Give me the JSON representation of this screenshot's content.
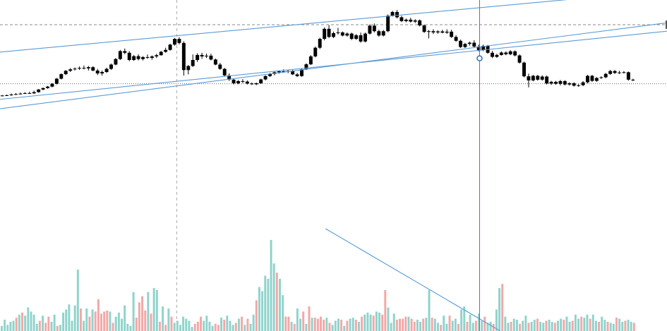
{
  "chart_data": {
    "type": "candlestick",
    "title": "",
    "xlabel": "",
    "ylabel": "",
    "grid": false,
    "legend": "none",
    "colors": {
      "candle": "#000000",
      "volume_up": "#8fd3cc",
      "volume_down": "#f4a7a7",
      "trendline": "#5b9bd5",
      "crosshair": "#a44aa0",
      "dashed": "#888888"
    },
    "ylim": [
      0,
      100
    ],
    "volume_ylim": [
      0,
      100
    ],
    "candles": [
      [
        60.2,
        60.4,
        59.9,
        60.2
      ],
      [
        60.2,
        60.6,
        60.0,
        60.3
      ],
      [
        60.3,
        61.0,
        60.1,
        60.6
      ],
      [
        60.6,
        61.2,
        60.4,
        60.8
      ],
      [
        60.8,
        61.4,
        60.6,
        61.0
      ],
      [
        61.0,
        61.6,
        60.8,
        61.2
      ],
      [
        61.2,
        61.8,
        60.9,
        61.1
      ],
      [
        61.1,
        62.2,
        60.9,
        61.6
      ],
      [
        61.6,
        62.9,
        61.4,
        62.7
      ],
      [
        62.7,
        63.5,
        62.4,
        63.3
      ],
      [
        63.3,
        64.2,
        63.0,
        63.9
      ],
      [
        63.9,
        65.4,
        63.6,
        65.1
      ],
      [
        65.1,
        67.5,
        64.8,
        67.2
      ],
      [
        67.2,
        69.4,
        66.9,
        69.1
      ],
      [
        69.1,
        70.8,
        68.7,
        70.5
      ],
      [
        70.5,
        71.6,
        70.0,
        71.1
      ],
      [
        71.1,
        71.9,
        70.6,
        71.4
      ],
      [
        71.4,
        72.3,
        70.9,
        71.7
      ],
      [
        71.7,
        72.7,
        71.1,
        71.5
      ],
      [
        71.5,
        72.5,
        70.6,
        72.0
      ],
      [
        72.0,
        72.4,
        70.3,
        70.6
      ],
      [
        70.6,
        71.3,
        68.7,
        69.4
      ],
      [
        69.4,
        70.6,
        68.5,
        70.0
      ],
      [
        70.0,
        71.8,
        69.6,
        71.3
      ],
      [
        71.3,
        73.5,
        70.9,
        73.1
      ],
      [
        73.1,
        75.8,
        72.8,
        75.4
      ],
      [
        75.4,
        79.2,
        75.0,
        78.7
      ],
      [
        78.7,
        79.8,
        77.4,
        78.0
      ],
      [
        78.0,
        78.7,
        74.5,
        75.0
      ],
      [
        75.0,
        77.1,
        74.6,
        76.6
      ],
      [
        76.6,
        77.4,
        74.8,
        75.4
      ],
      [
        75.4,
        76.6,
        74.8,
        76.2
      ],
      [
        76.2,
        77.3,
        75.5,
        75.9
      ],
      [
        75.9,
        76.9,
        75.1,
        76.5
      ],
      [
        76.5,
        77.6,
        75.8,
        77.0
      ],
      [
        77.0,
        78.8,
        76.8,
        78.4
      ],
      [
        78.4,
        80.1,
        78.0,
        79.2
      ],
      [
        79.2,
        81.8,
        78.9,
        81.4
      ],
      [
        81.4,
        84.2,
        81.0,
        83.8
      ],
      [
        83.8,
        84.5,
        81.5,
        82.1
      ],
      [
        82.1,
        82.8,
        68.5,
        70.8
      ],
      [
        70.8,
        72.9,
        69.0,
        72.5
      ],
      [
        72.5,
        77.3,
        72.1,
        75.0
      ],
      [
        75.0,
        77.8,
        74.2,
        77.1
      ],
      [
        77.1,
        78.0,
        75.5,
        76.5
      ],
      [
        76.5,
        77.7,
        75.8,
        76.8
      ],
      [
        76.8,
        77.6,
        74.8,
        75.2
      ],
      [
        75.2,
        75.6,
        72.8,
        73.1
      ],
      [
        73.1,
        73.8,
        70.9,
        71.3
      ],
      [
        71.3,
        71.7,
        68.2,
        68.6
      ],
      [
        68.6,
        69.4,
        66.3,
        66.8
      ],
      [
        66.8,
        67.2,
        64.8,
        65.3
      ],
      [
        65.3,
        66.6,
        64.9,
        66.2
      ],
      [
        66.2,
        67.0,
        65.4,
        66.0
      ],
      [
        66.0,
        66.5,
        64.8,
        65.2
      ],
      [
        65.2,
        65.6,
        64.6,
        64.9
      ],
      [
        64.9,
        65.6,
        64.5,
        65.3
      ],
      [
        65.3,
        67.2,
        65.0,
        66.9
      ],
      [
        66.9,
        68.6,
        66.5,
        68.3
      ],
      [
        68.3,
        69.6,
        67.9,
        69.2
      ],
      [
        69.2,
        70.2,
        68.6,
        69.9
      ],
      [
        69.9,
        70.7,
        69.3,
        70.3
      ],
      [
        70.3,
        71.1,
        69.7,
        70.1
      ],
      [
        70.1,
        70.9,
        69.5,
        70.4
      ],
      [
        70.4,
        70.9,
        68.7,
        69.0
      ],
      [
        69.0,
        69.6,
        67.9,
        68.3
      ],
      [
        68.3,
        71.5,
        68.0,
        71.1
      ],
      [
        71.1,
        73.6,
        70.8,
        73.2
      ],
      [
        73.2,
        77.0,
        72.9,
        76.5
      ],
      [
        76.5,
        80.6,
        76.1,
        80.1
      ],
      [
        80.1,
        84.3,
        79.6,
        83.8
      ],
      [
        83.8,
        88.6,
        83.2,
        88.0
      ],
      [
        88.0,
        89.5,
        84.2,
        84.6
      ],
      [
        84.6,
        86.8,
        84.1,
        86.2
      ],
      [
        86.2,
        88.4,
        85.6,
        86.5
      ],
      [
        86.5,
        86.9,
        84.8,
        85.2
      ],
      [
        85.2,
        86.5,
        84.7,
        86.0
      ],
      [
        86.0,
        86.4,
        83.3,
        83.8
      ],
      [
        83.8,
        85.8,
        83.4,
        85.3
      ],
      [
        85.3,
        86.4,
        82.2,
        82.7
      ],
      [
        82.7,
        86.4,
        82.3,
        86.0
      ],
      [
        86.0,
        89.8,
        85.6,
        89.3
      ],
      [
        89.3,
        90.2,
        86.5,
        87.0
      ],
      [
        87.0,
        87.6,
        84.7,
        85.2
      ],
      [
        85.2,
        87.5,
        84.8,
        87.0
      ],
      [
        87.0,
        94.0,
        86.6,
        93.5
      ],
      [
        93.5,
        95.5,
        93.1,
        95.0
      ],
      [
        95.0,
        95.8,
        92.3,
        92.8
      ],
      [
        92.8,
        93.4,
        90.8,
        91.2
      ],
      [
        91.2,
        92.3,
        90.7,
        91.8
      ],
      [
        91.8,
        92.6,
        90.6,
        91.0
      ],
      [
        91.0,
        92.0,
        90.4,
        91.5
      ],
      [
        91.5,
        91.9,
        89.0,
        89.4
      ],
      [
        89.4,
        89.8,
        86.3,
        86.7
      ],
      [
        86.7,
        87.5,
        84.0,
        87.0
      ],
      [
        87.0,
        87.8,
        85.8,
        86.5
      ],
      [
        86.5,
        87.4,
        85.9,
        86.9
      ],
      [
        86.9,
        87.6,
        86.1,
        86.4
      ],
      [
        86.4,
        87.8,
        85.9,
        86.8
      ],
      [
        86.8,
        87.6,
        84.2,
        84.6
      ],
      [
        84.6,
        85.3,
        82.6,
        83.0
      ],
      [
        83.0,
        83.5,
        80.0,
        80.4
      ],
      [
        80.4,
        82.1,
        80.0,
        81.7
      ],
      [
        81.7,
        82.7,
        81.0,
        82.2
      ],
      [
        82.2,
        83.2,
        80.1,
        80.6
      ],
      [
        80.6,
        81.4,
        78.6,
        79.1
      ],
      [
        79.1,
        81.4,
        78.7,
        80.9
      ],
      [
        80.9,
        81.3,
        77.6,
        78.0
      ],
      [
        78.0,
        78.8,
        75.8,
        76.3
      ],
      [
        76.3,
        77.6,
        75.9,
        77.1
      ],
      [
        77.1,
        78.6,
        76.8,
        78.1
      ],
      [
        78.1,
        78.6,
        77.0,
        77.4
      ],
      [
        77.4,
        79.1,
        77.0,
        78.6
      ],
      [
        78.6,
        79.0,
        76.5,
        76.9
      ],
      [
        76.9,
        77.3,
        73.5,
        73.9
      ],
      [
        73.9,
        74.3,
        67.8,
        68.2
      ],
      [
        68.2,
        69.3,
        63.6,
        66.5
      ],
      [
        66.5,
        68.8,
        66.1,
        68.4
      ],
      [
        68.4,
        68.8,
        66.4,
        66.8
      ],
      [
        66.8,
        68.6,
        66.4,
        68.1
      ],
      [
        68.1,
        68.5,
        64.8,
        65.2
      ],
      [
        65.2,
        66.3,
        64.6,
        65.9
      ],
      [
        65.9,
        66.3,
        64.7,
        65.1
      ],
      [
        65.1,
        66.7,
        64.4,
        66.2
      ],
      [
        66.2,
        66.6,
        64.4,
        64.8
      ],
      [
        64.8,
        65.7,
        64.3,
        65.3
      ],
      [
        65.3,
        65.7,
        63.9,
        64.3
      ],
      [
        64.3,
        64.9,
        63.8,
        64.5
      ],
      [
        64.5,
        66.2,
        64.1,
        65.7
      ],
      [
        65.7,
        68.8,
        65.3,
        68.4
      ],
      [
        68.4,
        68.8,
        65.9,
        66.3
      ],
      [
        66.3,
        67.9,
        65.9,
        67.5
      ],
      [
        67.5,
        68.2,
        67.1,
        67.8
      ],
      [
        67.8,
        69.6,
        67.4,
        69.2
      ],
      [
        69.2,
        70.9,
        68.8,
        70.4
      ],
      [
        70.4,
        70.8,
        69.2,
        69.6
      ],
      [
        69.6,
        70.5,
        69.2,
        69.8
      ],
      [
        69.8,
        70.4,
        69.4,
        69.9
      ],
      [
        69.9,
        70.2,
        66.4,
        66.8
      ],
      [
        66.8,
        67.2,
        66.2,
        66.6
      ]
    ],
    "volume": [
      [
        5,
        "up"
      ],
      [
        11,
        "up"
      ],
      [
        6,
        "up"
      ],
      [
        9,
        "up"
      ],
      [
        10,
        "up"
      ],
      [
        13,
        "down"
      ],
      [
        16,
        "up"
      ],
      [
        18,
        "down"
      ],
      [
        15,
        "up"
      ],
      [
        23,
        "up"
      ],
      [
        19,
        "up"
      ],
      [
        16,
        "up"
      ],
      [
        7,
        "up"
      ],
      [
        10,
        "down"
      ],
      [
        15,
        "up"
      ],
      [
        8,
        "down"
      ],
      [
        14,
        "down"
      ],
      [
        9,
        "up"
      ],
      [
        16,
        "up"
      ],
      [
        5,
        "down"
      ],
      [
        6,
        "up"
      ],
      [
        18,
        "up"
      ],
      [
        21,
        "up"
      ],
      [
        26,
        "up"
      ],
      [
        10,
        "up"
      ],
      [
        25,
        "up"
      ],
      [
        60,
        "up"
      ],
      [
        22,
        "down"
      ],
      [
        10,
        "up"
      ],
      [
        22,
        "up"
      ],
      [
        14,
        "down"
      ],
      [
        21,
        "up"
      ],
      [
        19,
        "down"
      ],
      [
        31,
        "down"
      ],
      [
        17,
        "down"
      ],
      [
        19,
        "down"
      ],
      [
        20,
        "down"
      ],
      [
        19,
        "up"
      ],
      [
        8,
        "down"
      ],
      [
        14,
        "up"
      ],
      [
        18,
        "up"
      ],
      [
        12,
        "up"
      ],
      [
        25,
        "up"
      ],
      [
        7,
        "up"
      ],
      [
        5,
        "up"
      ],
      [
        38,
        "up"
      ],
      [
        13,
        "down"
      ],
      [
        28,
        "down"
      ],
      [
        34,
        "down"
      ],
      [
        20,
        "down"
      ],
      [
        38,
        "up"
      ],
      [
        17,
        "down"
      ],
      [
        42,
        "up"
      ],
      [
        40,
        "up"
      ],
      [
        9,
        "down"
      ],
      [
        24,
        "up"
      ],
      [
        6,
        "down"
      ],
      [
        22,
        "up"
      ],
      [
        14,
        "down"
      ],
      [
        8,
        "up"
      ],
      [
        10,
        "up"
      ],
      [
        6,
        "up"
      ],
      [
        14,
        "up"
      ],
      [
        12,
        "up"
      ],
      [
        10,
        "up"
      ],
      [
        4,
        "up"
      ],
      [
        7,
        "down"
      ],
      [
        9,
        "down"
      ],
      [
        14,
        "down"
      ],
      [
        10,
        "up"
      ],
      [
        15,
        "up"
      ],
      [
        9,
        "up"
      ],
      [
        5,
        "up"
      ],
      [
        7,
        "down"
      ],
      [
        6,
        "down"
      ],
      [
        13,
        "up"
      ],
      [
        11,
        "down"
      ],
      [
        15,
        "up"
      ],
      [
        10,
        "up"
      ],
      [
        6,
        "up"
      ],
      [
        8,
        "down"
      ],
      [
        12,
        "up"
      ],
      [
        14,
        "down"
      ],
      [
        6,
        "up"
      ],
      [
        12,
        "down"
      ],
      [
        7,
        "up"
      ],
      [
        16,
        "up"
      ],
      [
        30,
        "down"
      ],
      [
        43,
        "up"
      ],
      [
        39,
        "up"
      ],
      [
        54,
        "up"
      ],
      [
        51,
        "up"
      ],
      [
        89,
        "up"
      ],
      [
        66,
        "up"
      ],
      [
        57,
        "down"
      ],
      [
        51,
        "up"
      ],
      [
        35,
        "up"
      ],
      [
        14,
        "down"
      ],
      [
        14,
        "down"
      ],
      [
        9,
        "up"
      ],
      [
        7,
        "down"
      ],
      [
        22,
        "up"
      ],
      [
        12,
        "up"
      ],
      [
        19,
        "down"
      ],
      [
        7,
        "up"
      ],
      [
        24,
        "down"
      ],
      [
        13,
        "up"
      ],
      [
        13,
        "down"
      ],
      [
        12,
        "down"
      ],
      [
        14,
        "down"
      ],
      [
        11,
        "down"
      ],
      [
        13,
        "up"
      ],
      [
        8,
        "down"
      ],
      [
        6,
        "up"
      ],
      [
        10,
        "up"
      ],
      [
        12,
        "up"
      ],
      [
        11,
        "down"
      ],
      [
        5,
        "up"
      ],
      [
        10,
        "down"
      ],
      [
        12,
        "up"
      ],
      [
        13,
        "up"
      ],
      [
        11,
        "down"
      ],
      [
        9,
        "up"
      ],
      [
        14,
        "down"
      ],
      [
        16,
        "up"
      ],
      [
        18,
        "up"
      ],
      [
        16,
        "up"
      ],
      [
        15,
        "down"
      ],
      [
        19,
        "up"
      ],
      [
        18,
        "up"
      ],
      [
        16,
        "down"
      ],
      [
        40,
        "down"
      ],
      [
        23,
        "up"
      ],
      [
        8,
        "up"
      ],
      [
        17,
        "up"
      ],
      [
        11,
        "down"
      ],
      [
        12,
        "down"
      ],
      [
        12,
        "down"
      ],
      [
        14,
        "down"
      ],
      [
        14,
        "up"
      ],
      [
        12,
        "down"
      ],
      [
        9,
        "down"
      ],
      [
        11,
        "up"
      ],
      [
        9,
        "up"
      ],
      [
        12,
        "down"
      ],
      [
        13,
        "up"
      ],
      [
        40,
        "up"
      ],
      [
        13,
        "down"
      ],
      [
        12,
        "up"
      ],
      [
        8,
        "up"
      ]
    ],
    "volume_series": [
      {
        "values_extra": [
          6,
          15,
          7,
          15,
          10,
          12,
          7,
          21,
          24,
          9,
          16,
          8,
          10,
          17,
          10,
          14,
          8,
          9,
          7,
          21,
          42,
          46,
          14,
          8,
          9,
          12,
          11,
          7,
          10,
          15,
          8,
          9,
          11,
          12,
          9,
          8,
          10,
          11,
          9,
          8,
          10,
          12,
          11,
          14,
          9,
          10,
          16,
          12,
          14,
          13,
          16,
          12,
          16,
          10,
          9,
          14,
          11,
          9,
          8,
          7,
          13,
          12,
          9,
          10,
          11,
          9,
          8
        ]
      }
    ],
    "trendlines": [
      {
        "from": [
          0,
          78.3
        ],
        "to": [
          1,
          104.0
        ]
      },
      {
        "from": [
          0,
          54.7
        ],
        "to": [
          1,
          90.5
        ]
      },
      {
        "from": [
          0,
          58.6
        ],
        "to": [
          1,
          87.0
        ]
      }
    ],
    "volume_trendline": {
      "from": [
        0.488,
        100
      ],
      "to": [
        0.75,
        0
      ]
    },
    "crosshair": {
      "x": 0.719,
      "y": 75.7
    },
    "reference_lines": [
      {
        "type": "dashed-horizontal",
        "y": 89.7
      },
      {
        "type": "dotted-horizontal",
        "y": 65.1
      },
      {
        "type": "dashed-vertical",
        "x": 0.265
      }
    ]
  }
}
